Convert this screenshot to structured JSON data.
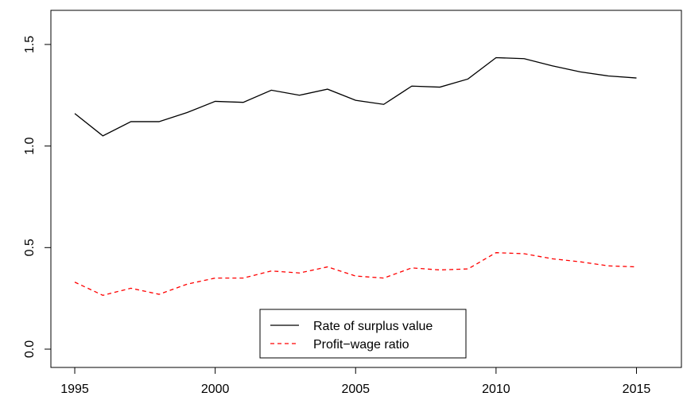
{
  "chart_data": {
    "type": "line",
    "x": [
      1995,
      1996,
      1997,
      1998,
      1999,
      2000,
      2001,
      2002,
      2003,
      2004,
      2005,
      2006,
      2007,
      2008,
      2009,
      2010,
      2011,
      2012,
      2013,
      2014,
      2015
    ],
    "series": [
      {
        "name": "Rate of surplus value",
        "color": "#000000",
        "dash": "solid",
        "values": [
          1.16,
          1.05,
          1.12,
          1.12,
          1.165,
          1.22,
          1.215,
          1.275,
          1.25,
          1.28,
          1.225,
          1.205,
          1.295,
          1.29,
          1.33,
          1.435,
          1.43,
          1.395,
          1.365,
          1.345,
          1.335
        ]
      },
      {
        "name": "Profit−wage ratio",
        "color": "#ff0000",
        "dash": "dashed",
        "values": [
          0.33,
          0.265,
          0.3,
          0.27,
          0.32,
          0.35,
          0.35,
          0.385,
          0.375,
          0.405,
          0.36,
          0.35,
          0.4,
          0.39,
          0.395,
          0.475,
          0.47,
          0.445,
          0.43,
          0.41,
          0.405
        ]
      }
    ],
    "xlim": [
      1994.15,
      2016.6
    ],
    "xticks": [
      1995,
      2000,
      2005,
      2010,
      2015
    ],
    "ylim": [
      -0.09,
      1.668
    ],
    "yticks": [
      {
        "value": 0,
        "label": "0.0"
      },
      0.5,
      {
        "value": 1,
        "label": "1.0"
      },
      1.5
    ],
    "legend": "bottom"
  }
}
